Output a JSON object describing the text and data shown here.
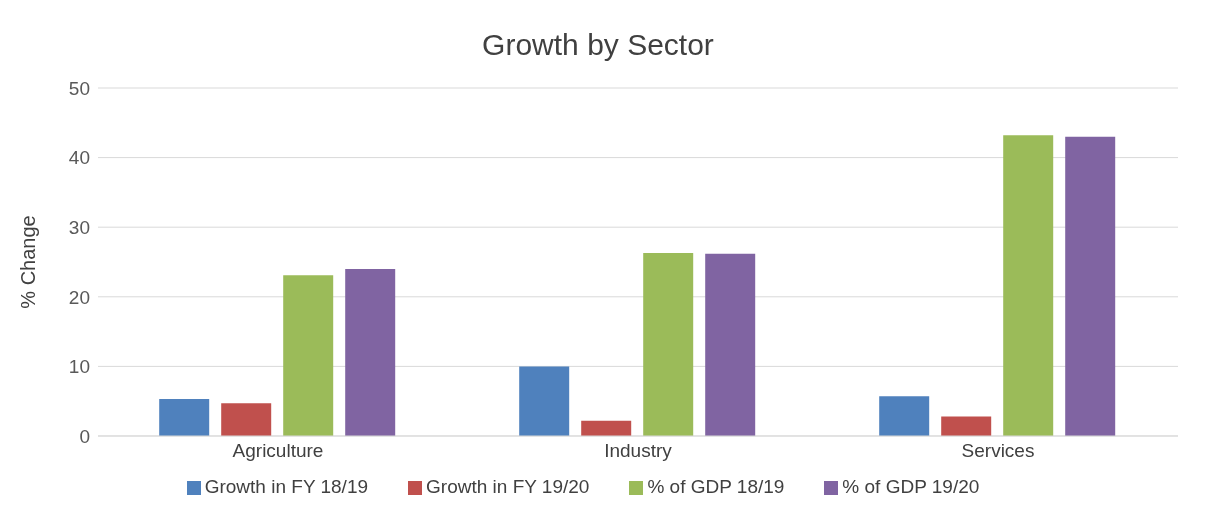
{
  "chart_data": {
    "type": "bar",
    "title": "Growth by Sector",
    "ylabel": "% Change",
    "categories": [
      "Agriculture",
      "Industry",
      "Services"
    ],
    "series": [
      {
        "name": "Growth in FY 18/19",
        "color": "#4f81bd",
        "values": [
          5.3,
          10.0,
          5.7
        ]
      },
      {
        "name": "Growth in FY 19/20",
        "color": "#c0504d",
        "values": [
          4.7,
          2.2,
          2.8
        ]
      },
      {
        "name": "% of GDP 18/19",
        "color": "#9bbb59",
        "values": [
          23.1,
          26.3,
          43.2
        ]
      },
      {
        "name": "% of GDP 19/20",
        "color": "#8064a2",
        "values": [
          24.0,
          26.2,
          43.0
        ]
      }
    ],
    "ylim": [
      0,
      50
    ],
    "yticks": [
      0,
      10,
      20,
      30,
      40,
      50
    ],
    "grid": "y",
    "legend": "bottom"
  }
}
